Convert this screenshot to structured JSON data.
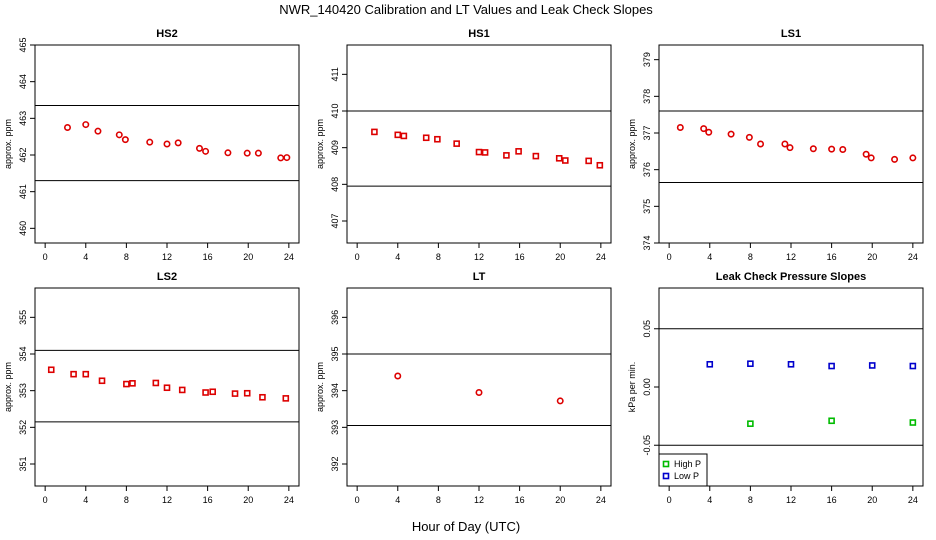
{
  "figure": {
    "title": "NWR_140420  Calibration and LT Values and Leak Check Slopes",
    "xlabel": "Hour of Day (UTC)"
  },
  "colors": {
    "red": "#dd0000",
    "green": "#00bb00",
    "blue": "#0000cc"
  },
  "chart_data": [
    {
      "type": "scatter",
      "title": "HS2",
      "ylabel": "approx. ppm",
      "xlim": [
        -1,
        25
      ],
      "ylim": [
        459.6,
        465
      ],
      "xticks": [
        0,
        4,
        8,
        12,
        16,
        20,
        24
      ],
      "yticks": [
        460,
        461,
        462,
        463,
        464,
        465
      ],
      "hlines": [
        463.35,
        461.3
      ],
      "series": [
        {
          "color": "red",
          "marker": "circle",
          "x": [
            2.2,
            4.0,
            5.2,
            7.3,
            7.9,
            10.3,
            12.0,
            13.1,
            15.2,
            15.8,
            18.0,
            19.9,
            21.0,
            23.2,
            23.8
          ],
          "y": [
            462.75,
            462.83,
            462.65,
            462.55,
            462.42,
            462.35,
            462.3,
            462.33,
            462.18,
            462.1,
            462.06,
            462.05,
            462.05,
            461.92,
            461.93
          ]
        }
      ]
    },
    {
      "type": "scatter",
      "title": "HS1",
      "ylabel": "approx. ppm",
      "xlim": [
        -1,
        25
      ],
      "ylim": [
        406.4,
        411.8
      ],
      "xticks": [
        0,
        4,
        8,
        12,
        16,
        20,
        24
      ],
      "yticks": [
        407,
        408,
        409,
        410,
        411
      ],
      "hlines": [
        410.0,
        407.95
      ],
      "series": [
        {
          "color": "red",
          "marker": "square",
          "x": [
            1.7,
            4.0,
            4.6,
            6.8,
            7.9,
            9.8,
            12.0,
            12.6,
            14.7,
            15.9,
            17.6,
            19.9,
            20.5,
            22.8,
            23.9
          ],
          "y": [
            409.43,
            409.35,
            409.32,
            409.27,
            409.23,
            409.11,
            408.88,
            408.87,
            408.79,
            408.9,
            408.77,
            408.71,
            408.65,
            408.64,
            408.52
          ]
        }
      ]
    },
    {
      "type": "scatter",
      "title": "LS1",
      "ylabel": "approx. ppm",
      "xlim": [
        -1,
        25
      ],
      "ylim": [
        374,
        379.4
      ],
      "xticks": [
        0,
        4,
        8,
        12,
        16,
        20,
        24
      ],
      "yticks": [
        374,
        375,
        376,
        377,
        378,
        379
      ],
      "hlines": [
        377.6,
        375.65
      ],
      "series": [
        {
          "color": "red",
          "marker": "circle",
          "x": [
            1.1,
            3.4,
            3.9,
            6.1,
            7.9,
            9.0,
            11.4,
            11.9,
            14.2,
            16.0,
            17.1,
            19.4,
            19.9,
            22.2,
            24.0
          ],
          "y": [
            377.15,
            377.12,
            377.02,
            376.97,
            376.88,
            376.7,
            376.7,
            376.6,
            376.57,
            376.56,
            376.55,
            376.42,
            376.32,
            376.28,
            376.32
          ]
        }
      ]
    },
    {
      "type": "scatter",
      "title": "LS2",
      "ylabel": "approx. ppm",
      "xlim": [
        -1,
        25
      ],
      "ylim": [
        350.4,
        355.8
      ],
      "xticks": [
        0,
        4,
        8,
        12,
        16,
        20,
        24
      ],
      "yticks": [
        351,
        352,
        353,
        354,
        355
      ],
      "hlines": [
        354.1,
        352.15
      ],
      "series": [
        {
          "color": "red",
          "marker": "square",
          "x": [
            0.6,
            2.8,
            4.0,
            5.6,
            8.0,
            8.6,
            10.9,
            12.0,
            13.5,
            15.8,
            16.5,
            18.7,
            19.9,
            21.4,
            23.7
          ],
          "y": [
            353.57,
            353.45,
            353.45,
            353.27,
            353.18,
            353.2,
            353.21,
            353.08,
            353.02,
            352.95,
            352.97,
            352.92,
            352.93,
            352.82,
            352.79
          ]
        }
      ]
    },
    {
      "type": "scatter",
      "title": "LT",
      "ylabel": "approx. ppm",
      "xlim": [
        -1,
        25
      ],
      "ylim": [
        391.4,
        396.8
      ],
      "xticks": [
        0,
        4,
        8,
        12,
        16,
        20,
        24
      ],
      "yticks": [
        392,
        393,
        394,
        395,
        396
      ],
      "hlines": [
        395.0,
        393.05
      ],
      "series": [
        {
          "color": "red",
          "marker": "circle",
          "x": [
            4.0,
            12.0,
            20.0
          ],
          "y": [
            394.4,
            393.95,
            393.72
          ]
        }
      ]
    },
    {
      "type": "scatter",
      "title": "Leak Check Pressure Slopes",
      "ylabel": "kPa per min.",
      "xlim": [
        -1,
        25
      ],
      "ylim": [
        -0.085,
        0.085
      ],
      "xticks": [
        0,
        4,
        8,
        12,
        16,
        20,
        24
      ],
      "yticks": [
        -0.05,
        0.0,
        0.05
      ],
      "ytick_labels": [
        "-0.05",
        "0.00",
        "0.05"
      ],
      "hlines": [
        0.05,
        -0.05
      ],
      "legend": {
        "placement": "bottom-left",
        "entries": [
          {
            "label": "High P",
            "color": "green"
          },
          {
            "label": "Low P",
            "color": "blue"
          }
        ]
      },
      "series": [
        {
          "name": "High P",
          "color": "green",
          "marker": "square",
          "x": [
            8,
            16,
            24
          ],
          "y": [
            -0.0315,
            -0.029,
            -0.0305
          ]
        },
        {
          "name": "Low P",
          "color": "blue",
          "marker": "square",
          "x": [
            4,
            8,
            12,
            16,
            20,
            24
          ],
          "y": [
            0.0195,
            0.02,
            0.0195,
            0.018,
            0.0185,
            0.018
          ]
        }
      ]
    }
  ]
}
